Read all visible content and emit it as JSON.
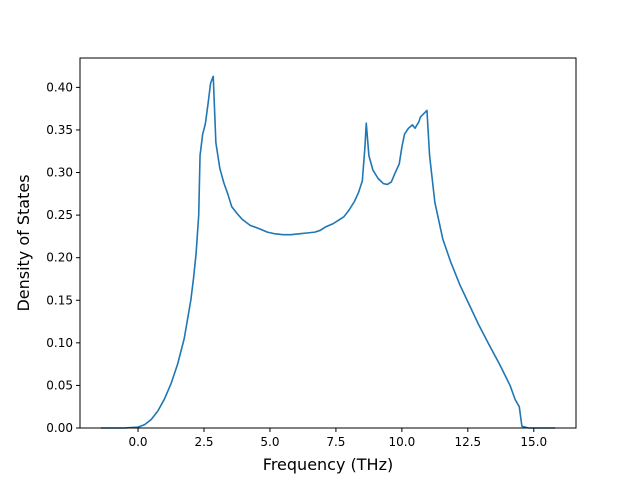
{
  "chart_data": {
    "type": "line",
    "title": "",
    "xlabel": "Frequency (THz)",
    "ylabel": "Density of States",
    "xlim": [
      -2.2,
      16.6
    ],
    "ylim": [
      0.0,
      0.4345
    ],
    "xticks": [
      0.0,
      2.5,
      5.0,
      7.5,
      10.0,
      12.5,
      15.0
    ],
    "xtick_labels": [
      "0.0",
      "2.5",
      "5.0",
      "7.5",
      "10.0",
      "12.5",
      "15.0"
    ],
    "yticks": [
      0.0,
      0.05,
      0.1,
      0.15,
      0.2,
      0.25,
      0.3,
      0.35,
      0.4
    ],
    "ytick_labels": [
      "0.00",
      "0.05",
      "0.10",
      "0.15",
      "0.20",
      "0.25",
      "0.30",
      "0.35",
      "0.40"
    ],
    "grid": false,
    "line_color": "#1f77b4",
    "series": [
      {
        "x": [
          -1.4,
          -0.5,
          0.0,
          0.25,
          0.5,
          0.75,
          1.0,
          1.25,
          1.5,
          1.75,
          2.0,
          2.1,
          2.2,
          2.3,
          2.35,
          2.45,
          2.55,
          2.65,
          2.75,
          2.85,
          2.95,
          3.1,
          3.25,
          3.4,
          3.55,
          3.75,
          3.95,
          4.25,
          4.6,
          4.9,
          5.2,
          5.5,
          5.8,
          6.1,
          6.4,
          6.7,
          6.9,
          7.1,
          7.4,
          7.6,
          7.8,
          8.0,
          8.2,
          8.35,
          8.5,
          8.6,
          8.65,
          8.75,
          8.9,
          9.1,
          9.3,
          9.45,
          9.6,
          9.75,
          9.9,
          10.0,
          10.1,
          10.25,
          10.4,
          10.5,
          10.65,
          10.7,
          10.95,
          11.05,
          11.25,
          11.55,
          11.85,
          12.2,
          12.55,
          12.9,
          13.3,
          13.7,
          14.1,
          14.3,
          14.45,
          14.55,
          14.8,
          15.8
        ],
        "y": [
          0.0,
          0.0,
          0.001,
          0.004,
          0.01,
          0.02,
          0.034,
          0.052,
          0.075,
          0.105,
          0.15,
          0.175,
          0.205,
          0.25,
          0.32,
          0.345,
          0.357,
          0.38,
          0.405,
          0.413,
          0.335,
          0.305,
          0.288,
          0.275,
          0.26,
          0.252,
          0.245,
          0.238,
          0.234,
          0.23,
          0.228,
          0.227,
          0.227,
          0.228,
          0.229,
          0.23,
          0.232,
          0.236,
          0.24,
          0.244,
          0.248,
          0.256,
          0.266,
          0.276,
          0.29,
          0.33,
          0.358,
          0.32,
          0.303,
          0.293,
          0.287,
          0.286,
          0.289,
          0.3,
          0.31,
          0.33,
          0.345,
          0.352,
          0.356,
          0.352,
          0.36,
          0.365,
          0.373,
          0.32,
          0.265,
          0.222,
          0.195,
          0.168,
          0.145,
          0.122,
          0.098,
          0.075,
          0.05,
          0.033,
          0.025,
          0.002,
          0.0,
          0.0
        ]
      }
    ]
  }
}
